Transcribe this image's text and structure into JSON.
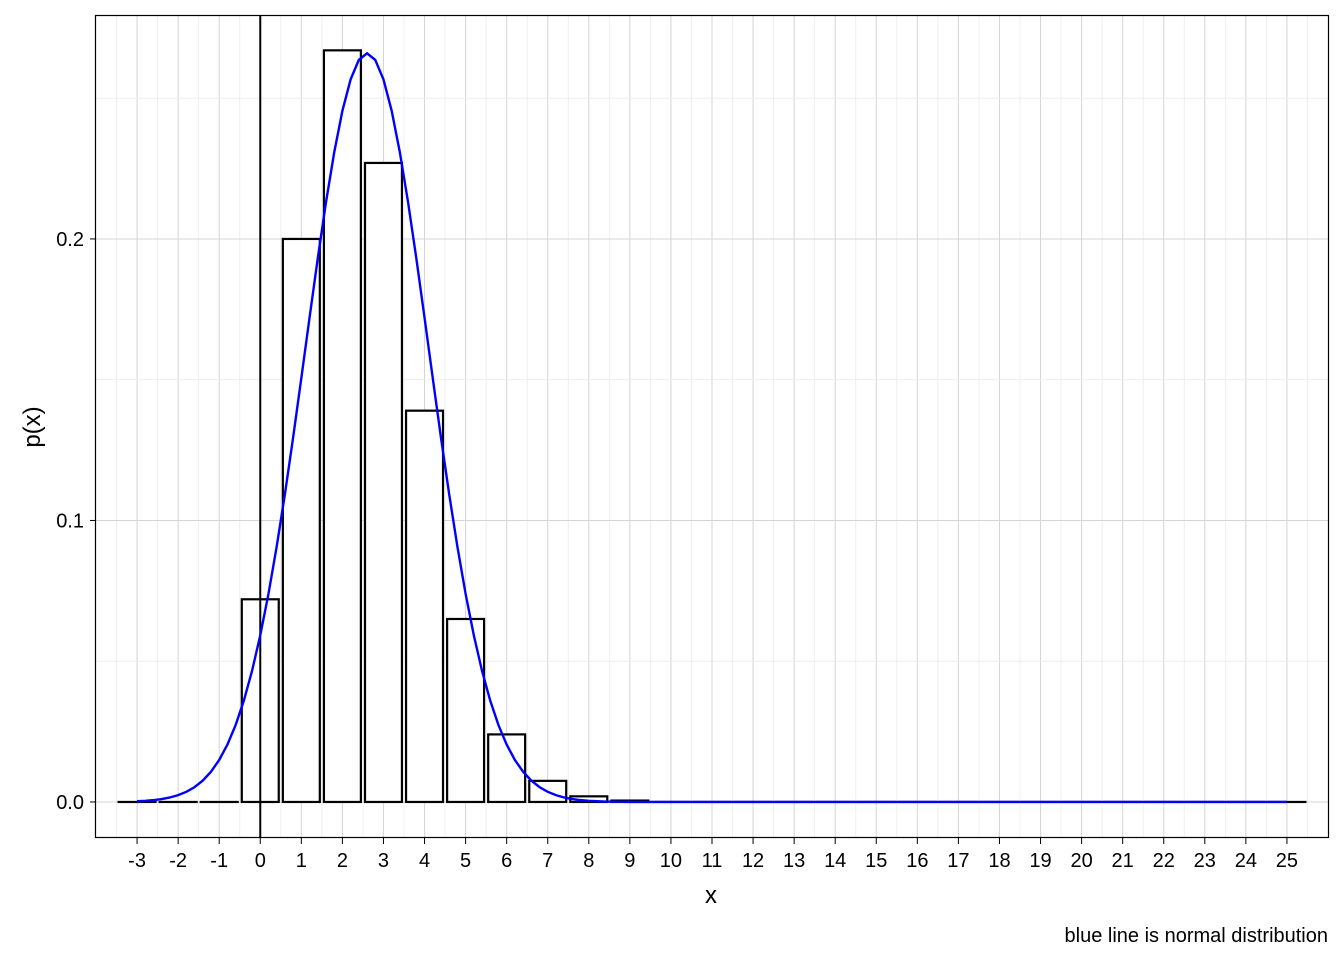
{
  "chart_data": {
    "type": "bar",
    "xlabel": "x",
    "ylabel": "p(x)",
    "caption": "blue line is normal distribution",
    "x_ticks": [
      "-3",
      "-2",
      "-1",
      "0",
      "1",
      "2",
      "3",
      "4",
      "5",
      "6",
      "7",
      "8",
      "9",
      "10",
      "11",
      "12",
      "13",
      "14",
      "15",
      "16",
      "17",
      "18",
      "19",
      "20",
      "21",
      "22",
      "23",
      "24",
      "25"
    ],
    "y_ticks": [
      "0.0",
      "0.1",
      "0.2"
    ],
    "xlim": [
      -4,
      26
    ],
    "ylim": [
      -0.0128,
      0.2792
    ],
    "grid": true,
    "series": [
      {
        "type": "bar",
        "categories": [
          -3,
          -2,
          -1,
          0,
          1,
          2,
          3,
          4,
          5,
          6,
          7,
          8,
          9,
          10,
          11,
          12,
          13,
          14,
          15,
          16,
          17,
          18,
          19,
          20,
          21,
          22,
          23,
          24,
          25
        ],
        "values": [
          0,
          0,
          0,
          0.072,
          0.2,
          0.267,
          0.227,
          0.139,
          0.065,
          0.024,
          0.0075,
          0.002,
          0.0005,
          0,
          0,
          0,
          0,
          0,
          0,
          0,
          0,
          0,
          0,
          0,
          0,
          0,
          0,
          0,
          0
        ],
        "color": "#000000"
      },
      {
        "type": "line",
        "distribution": "normal",
        "mean": 2.6,
        "sd": 1.5,
        "x_range": [
          -3,
          25
        ],
        "color": "#0000ff"
      }
    ],
    "reference_line": {
      "x": 0,
      "color": "#000000"
    },
    "colors": {
      "bar_fill": "#ffffff",
      "bar_outline": "#000000",
      "curve": "#0000ff",
      "grid": "#d9d9d9",
      "frame": "#000000"
    }
  }
}
